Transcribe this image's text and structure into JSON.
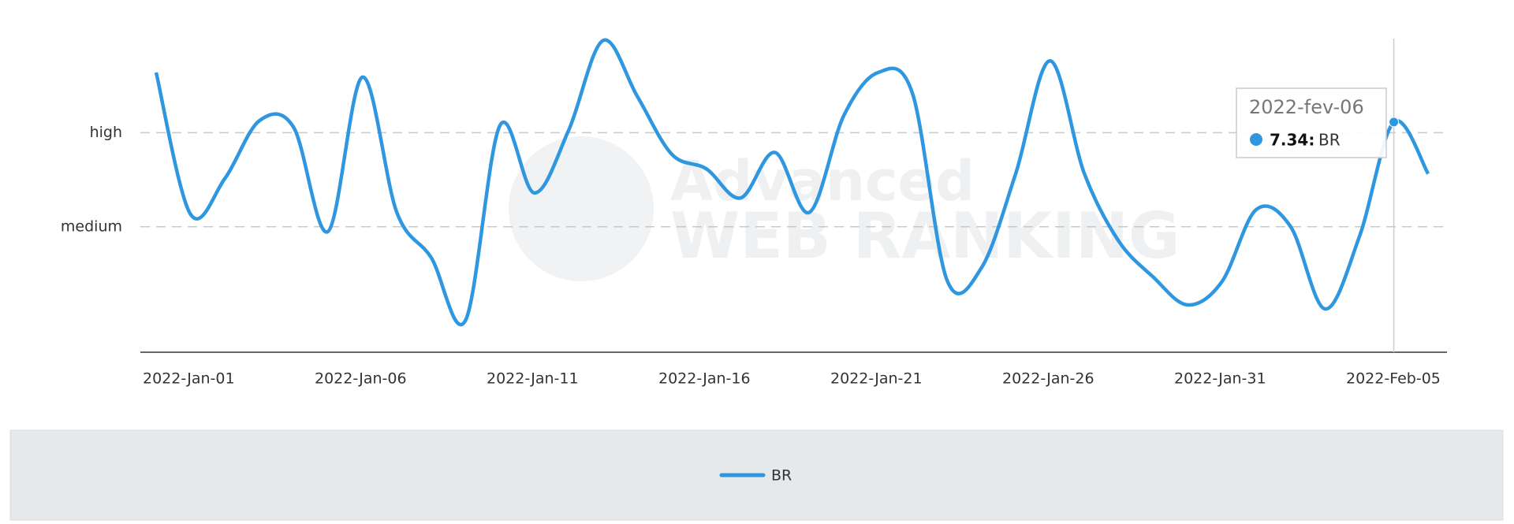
{
  "chart_data": {
    "type": "line",
    "categories": [
      "2022-Jan-01",
      null,
      null,
      null,
      null,
      "2022-Jan-06",
      null,
      null,
      null,
      null,
      "2022-Jan-11",
      null,
      null,
      null,
      null,
      "2022-Jan-16",
      null,
      null,
      null,
      null,
      "2022-Jan-21",
      null,
      null,
      null,
      null,
      "2022-Jan-26",
      null,
      null,
      null,
      null,
      "2022-Jan-31",
      null,
      null,
      null,
      null,
      "2022-Feb-05",
      null,
      null
    ],
    "series": [
      {
        "name": "BR",
        "color": "#2f96e0",
        "values": [
          8.92,
          4.4,
          5.54,
          7.38,
          7.17,
          3.85,
          8.77,
          4.46,
          3.02,
          1.02,
          7.23,
          5.08,
          7.08,
          9.94,
          8.15,
          6.31,
          5.85,
          4.92,
          6.37,
          4.46,
          7.54,
          8.92,
          8.25,
          2.31,
          2.68,
          5.69,
          9.29,
          5.69,
          3.54,
          2.4,
          1.51,
          2.25,
          4.55,
          4.0,
          1.38,
          3.69,
          7.34,
          5.69
        ]
      }
    ],
    "ylim": [
      0,
      10
    ],
    "yticks": [
      {
        "value": 4,
        "label": "medium"
      },
      {
        "value": 7,
        "label": "high"
      }
    ],
    "grid": true,
    "tooltip": {
      "title": "2022-fev-06",
      "value_label": "7.34:"
    },
    "watermark": [
      "Advanced",
      "WEB RANKING"
    ]
  }
}
